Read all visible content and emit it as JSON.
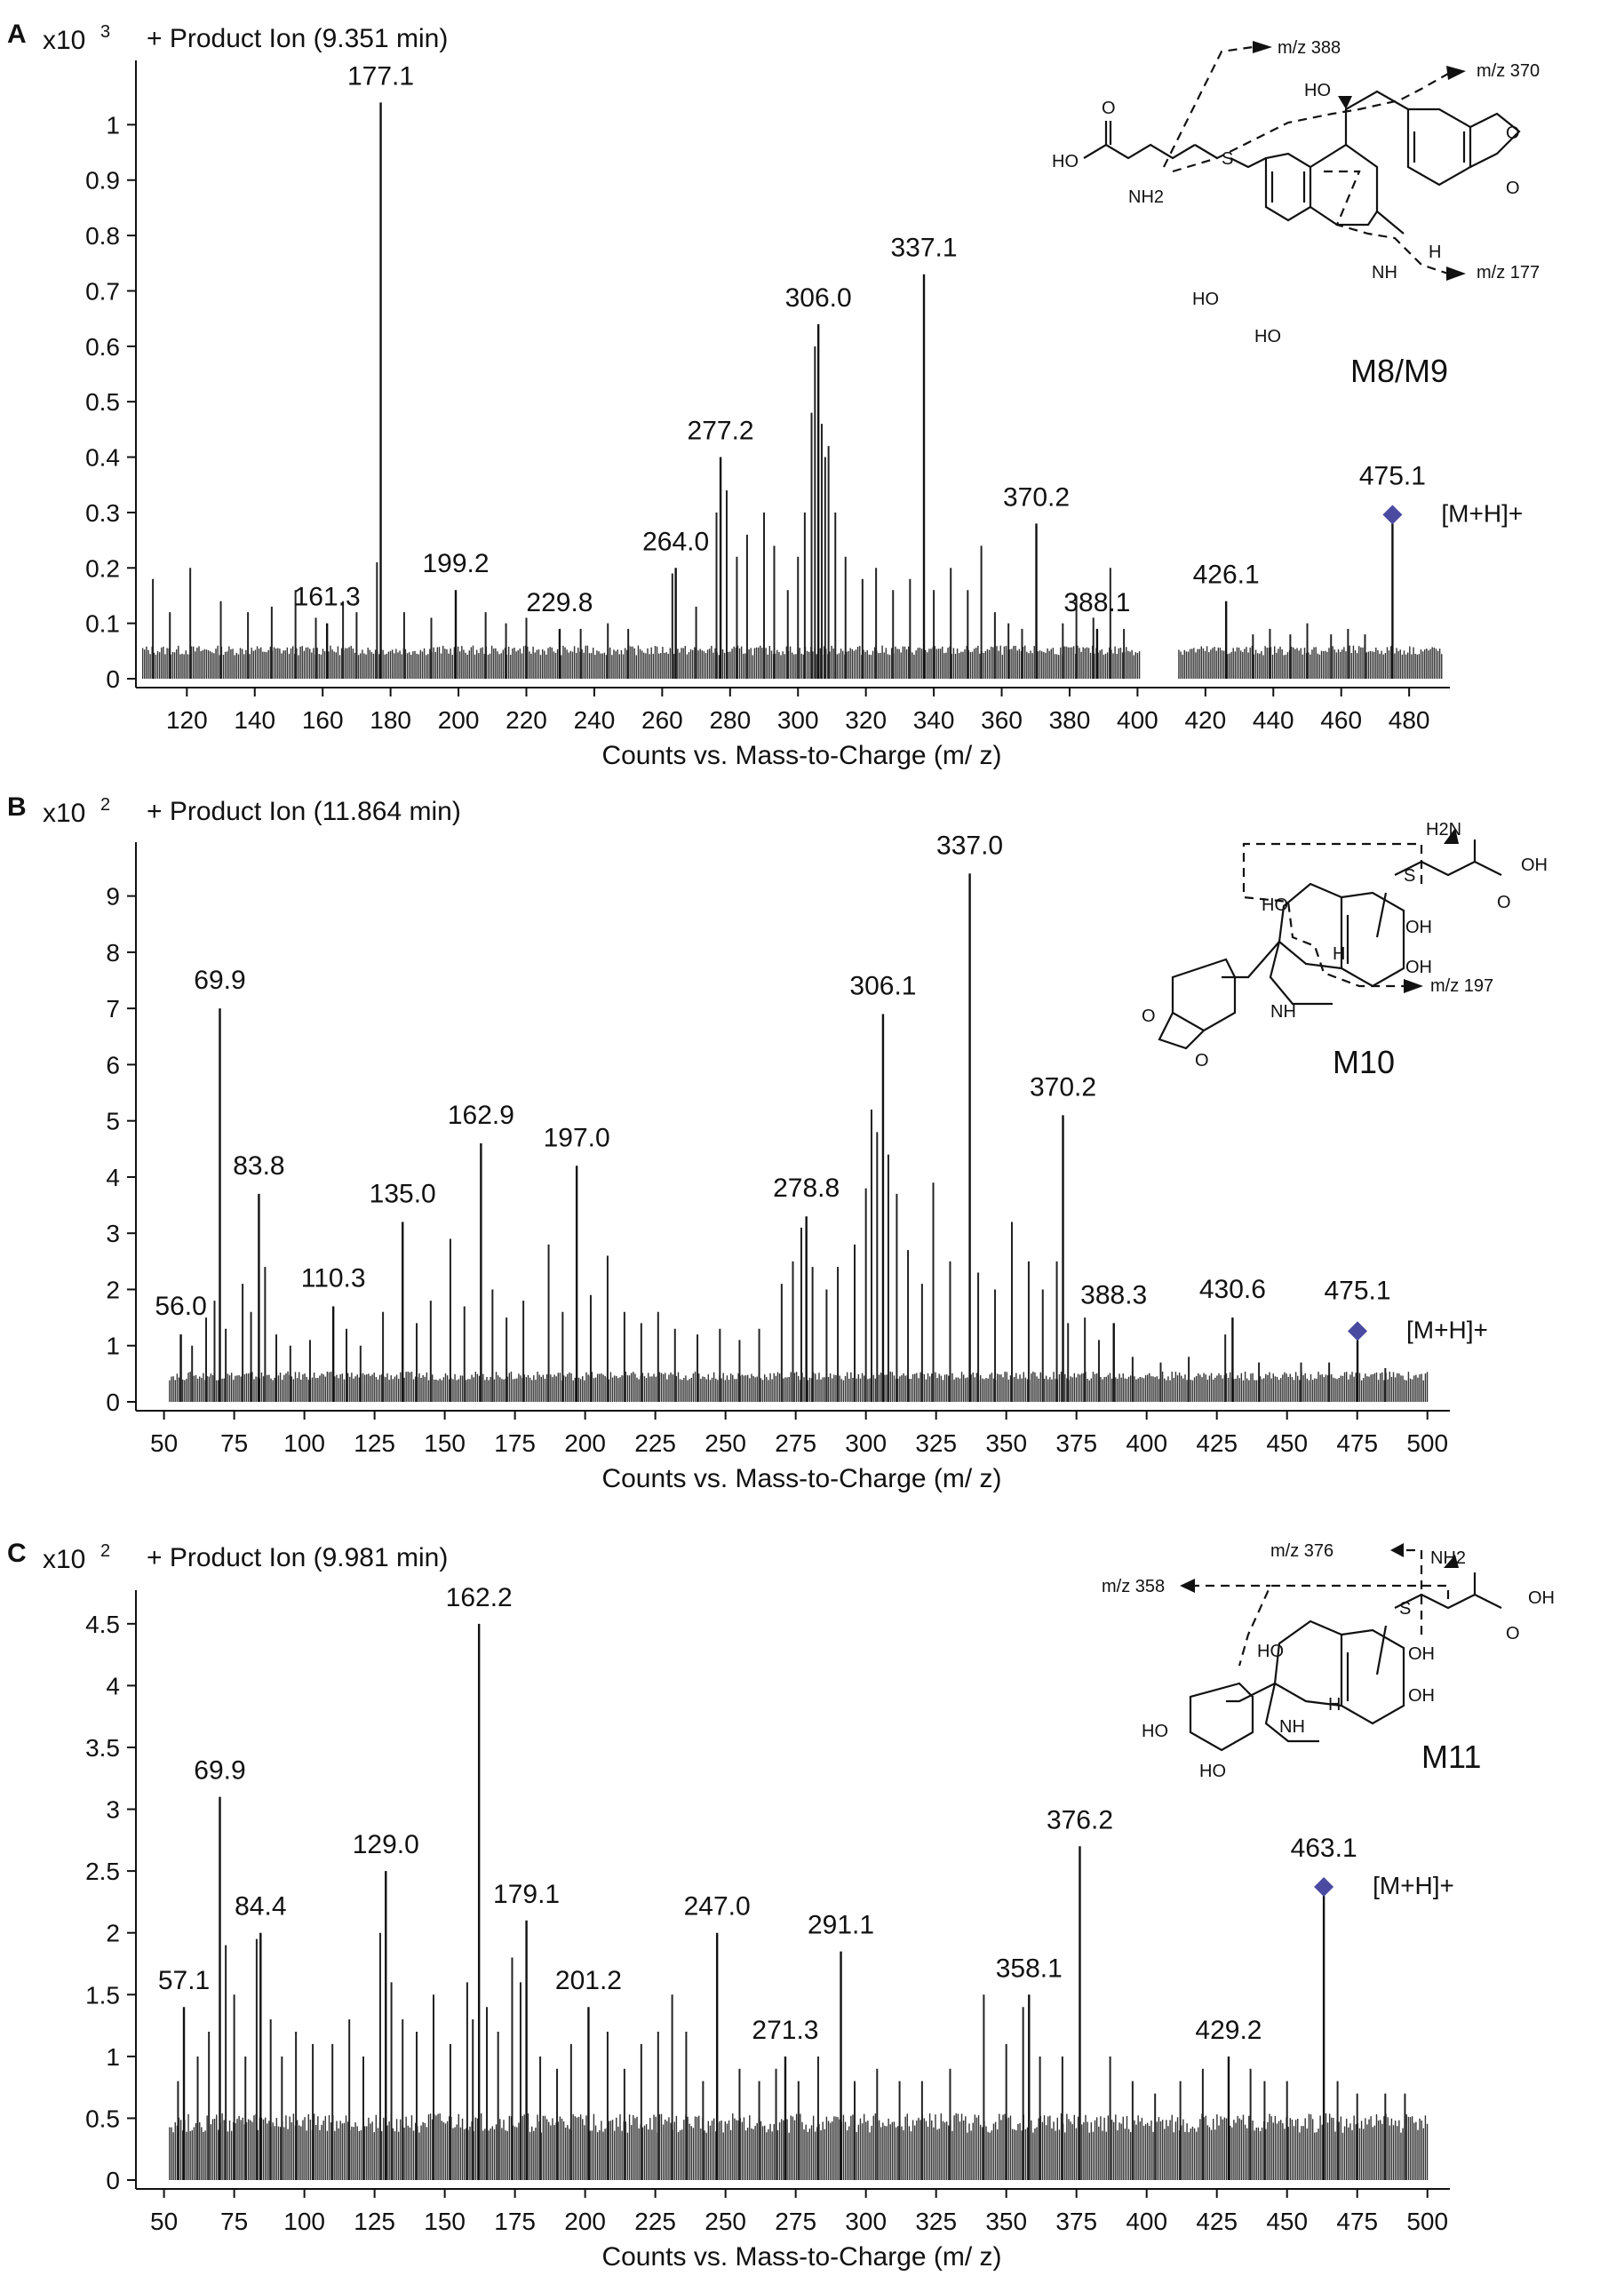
{
  "chart_data": [
    {
      "type": "bar",
      "panel_label": "A",
      "scale_label": "x10",
      "scale_exp": "3",
      "title": "+ Product Ion (9.351 min)",
      "xlabel": "Counts vs. Mass-to-Charge (m/ z)",
      "xlim": [
        105,
        492
      ],
      "ylim": [
        0,
        1.1
      ],
      "xticks": [
        120,
        140,
        160,
        180,
        200,
        220,
        240,
        260,
        280,
        300,
        320,
        340,
        360,
        380,
        400,
        420,
        440,
        460,
        480
      ],
      "yticks": [
        0,
        0.1,
        0.2,
        0.3,
        0.4,
        0.5,
        0.6,
        0.7,
        0.8,
        0.9,
        1
      ],
      "ytick_labels": [
        "0",
        "0.1",
        "0.2",
        "0.3",
        "0.4",
        "0.5",
        "0.6",
        "0.7",
        "0.8",
        "0.9",
        "1"
      ],
      "baseline_range": [
        107,
        490
      ],
      "baseline_gaps": [
        [
          401,
          412
        ]
      ],
      "baseline_level": 0.05,
      "peaks": [
        {
          "x": 177.1,
          "y": 1.04,
          "label": "177.1"
        },
        {
          "x": 161.3,
          "y": 0.1,
          "label": "161.3"
        },
        {
          "x": 199.2,
          "y": 0.16,
          "label": "199.2"
        },
        {
          "x": 229.8,
          "y": 0.09,
          "label": "229.8"
        },
        {
          "x": 264.0,
          "y": 0.2,
          "label": "264.0"
        },
        {
          "x": 277.2,
          "y": 0.4,
          "label": "277.2"
        },
        {
          "x": 306.0,
          "y": 0.64,
          "label": "306.0"
        },
        {
          "x": 337.1,
          "y": 0.73,
          "label": "337.1"
        },
        {
          "x": 370.2,
          "y": 0.28,
          "label": "370.2"
        },
        {
          "x": 388.1,
          "y": 0.09,
          "label": "388.1"
        },
        {
          "x": 426.1,
          "y": 0.14,
          "label": "426.1"
        },
        {
          "x": 475.1,
          "y": 0.28,
          "label": "475.1",
          "marker": true
        }
      ],
      "minor_peaks": [
        {
          "x": 110,
          "y": 0.18
        },
        {
          "x": 115,
          "y": 0.12
        },
        {
          "x": 121,
          "y": 0.2
        },
        {
          "x": 130,
          "y": 0.14
        },
        {
          "x": 138,
          "y": 0.12
        },
        {
          "x": 145,
          "y": 0.13
        },
        {
          "x": 152,
          "y": 0.16
        },
        {
          "x": 158,
          "y": 0.11
        },
        {
          "x": 166,
          "y": 0.14
        },
        {
          "x": 170,
          "y": 0.12
        },
        {
          "x": 176,
          "y": 0.21
        },
        {
          "x": 184,
          "y": 0.12
        },
        {
          "x": 192,
          "y": 0.11
        },
        {
          "x": 208,
          "y": 0.12
        },
        {
          "x": 214,
          "y": 0.1
        },
        {
          "x": 220,
          "y": 0.11
        },
        {
          "x": 236,
          "y": 0.09
        },
        {
          "x": 244,
          "y": 0.1
        },
        {
          "x": 250,
          "y": 0.09
        },
        {
          "x": 263,
          "y": 0.19
        },
        {
          "x": 270,
          "y": 0.13
        },
        {
          "x": 276,
          "y": 0.3
        },
        {
          "x": 279,
          "y": 0.34
        },
        {
          "x": 282,
          "y": 0.22
        },
        {
          "x": 285,
          "y": 0.26
        },
        {
          "x": 290,
          "y": 0.3
        },
        {
          "x": 293,
          "y": 0.24
        },
        {
          "x": 297,
          "y": 0.16
        },
        {
          "x": 300,
          "y": 0.22
        },
        {
          "x": 302,
          "y": 0.3
        },
        {
          "x": 304,
          "y": 0.48
        },
        {
          "x": 305,
          "y": 0.6
        },
        {
          "x": 307,
          "y": 0.46
        },
        {
          "x": 308,
          "y": 0.4
        },
        {
          "x": 309,
          "y": 0.42
        },
        {
          "x": 311,
          "y": 0.3
        },
        {
          "x": 314,
          "y": 0.22
        },
        {
          "x": 319,
          "y": 0.18
        },
        {
          "x": 323,
          "y": 0.2
        },
        {
          "x": 328,
          "y": 0.16
        },
        {
          "x": 333,
          "y": 0.18
        },
        {
          "x": 340,
          "y": 0.16
        },
        {
          "x": 345,
          "y": 0.2
        },
        {
          "x": 350,
          "y": 0.16
        },
        {
          "x": 354,
          "y": 0.24
        },
        {
          "x": 358,
          "y": 0.12
        },
        {
          "x": 362,
          "y": 0.1
        },
        {
          "x": 366,
          "y": 0.09
        },
        {
          "x": 378,
          "y": 0.1
        },
        {
          "x": 382,
          "y": 0.15
        },
        {
          "x": 387,
          "y": 0.11
        },
        {
          "x": 392,
          "y": 0.2
        },
        {
          "x": 396,
          "y": 0.09
        },
        {
          "x": 434,
          "y": 0.08
        },
        {
          "x": 439,
          "y": 0.09
        },
        {
          "x": 445,
          "y": 0.08
        },
        {
          "x": 450,
          "y": 0.1
        },
        {
          "x": 457,
          "y": 0.08
        },
        {
          "x": 462,
          "y": 0.09
        },
        {
          "x": 467,
          "y": 0.08
        }
      ],
      "legend": "[M+H]+",
      "structure": {
        "name": "M8/M9",
        "fragments": [
          "m/z 388",
          "m/z 370",
          "m/z 177"
        ],
        "groups": [
          "HO",
          "O",
          "NH2",
          "S",
          "HO",
          "O",
          "O",
          "HO",
          "HO",
          "NH",
          "H"
        ]
      }
    },
    {
      "type": "bar",
      "panel_label": "B",
      "scale_label": "x10",
      "scale_exp": "2",
      "title": "+ Product Ion (11.864 min)",
      "xlabel": "Counts vs. Mass-to-Charge (m/ z)",
      "xlim": [
        40,
        508
      ],
      "ylim": [
        0,
        9.8
      ],
      "xticks": [
        50,
        75,
        100,
        125,
        150,
        175,
        200,
        225,
        250,
        275,
        300,
        325,
        350,
        375,
        400,
        425,
        450,
        475,
        500
      ],
      "yticks": [
        0,
        1,
        2,
        3,
        4,
        5,
        6,
        7,
        8,
        9
      ],
      "ytick_labels": [
        "0",
        "1",
        "2",
        "3",
        "4",
        "5",
        "6",
        "7",
        "8",
        "9"
      ],
      "baseline_range": [
        52,
        500
      ],
      "baseline_gaps": [],
      "baseline_level": 0.45,
      "peaks": [
        {
          "x": 69.9,
          "y": 7.0,
          "label": "69.9"
        },
        {
          "x": 83.8,
          "y": 3.7,
          "label": "83.8"
        },
        {
          "x": 56.0,
          "y": 1.2,
          "label": "56.0"
        },
        {
          "x": 110.3,
          "y": 1.7,
          "label": "110.3"
        },
        {
          "x": 135.0,
          "y": 3.2,
          "label": "135.0"
        },
        {
          "x": 162.9,
          "y": 4.6,
          "label": "162.9"
        },
        {
          "x": 197.0,
          "y": 4.2,
          "label": "197.0"
        },
        {
          "x": 278.8,
          "y": 3.3,
          "label": "278.8"
        },
        {
          "x": 306.1,
          "y": 6.9,
          "label": "306.1"
        },
        {
          "x": 337.0,
          "y": 9.4,
          "label": "337.0"
        },
        {
          "x": 370.2,
          "y": 5.1,
          "label": "370.2"
        },
        {
          "x": 388.3,
          "y": 1.4,
          "label": "388.3"
        },
        {
          "x": 430.6,
          "y": 1.5,
          "label": "430.6"
        },
        {
          "x": 475.1,
          "y": 1.1,
          "label": "475.1",
          "marker": true
        }
      ],
      "minor_peaks": [
        {
          "x": 60,
          "y": 1.0
        },
        {
          "x": 65,
          "y": 1.5
        },
        {
          "x": 68,
          "y": 1.8
        },
        {
          "x": 72,
          "y": 1.3
        },
        {
          "x": 78,
          "y": 2.1
        },
        {
          "x": 81,
          "y": 1.6
        },
        {
          "x": 86,
          "y": 2.4
        },
        {
          "x": 90,
          "y": 1.2
        },
        {
          "x": 95,
          "y": 1.0
        },
        {
          "x": 102,
          "y": 1.1
        },
        {
          "x": 115,
          "y": 1.3
        },
        {
          "x": 120,
          "y": 1.0
        },
        {
          "x": 128,
          "y": 1.6
        },
        {
          "x": 140,
          "y": 1.4
        },
        {
          "x": 145,
          "y": 1.8
        },
        {
          "x": 152,
          "y": 2.9
        },
        {
          "x": 157,
          "y": 1.7
        },
        {
          "x": 167,
          "y": 2.0
        },
        {
          "x": 172,
          "y": 1.5
        },
        {
          "x": 178,
          "y": 1.8
        },
        {
          "x": 187,
          "y": 2.8
        },
        {
          "x": 192,
          "y": 1.6
        },
        {
          "x": 202,
          "y": 1.9
        },
        {
          "x": 208,
          "y": 2.6
        },
        {
          "x": 214,
          "y": 1.6
        },
        {
          "x": 220,
          "y": 1.4
        },
        {
          "x": 226,
          "y": 1.6
        },
        {
          "x": 232,
          "y": 1.3
        },
        {
          "x": 240,
          "y": 1.2
        },
        {
          "x": 248,
          "y": 1.3
        },
        {
          "x": 255,
          "y": 1.1
        },
        {
          "x": 262,
          "y": 1.3
        },
        {
          "x": 270,
          "y": 2.1
        },
        {
          "x": 274,
          "y": 2.5
        },
        {
          "x": 277,
          "y": 3.1
        },
        {
          "x": 281,
          "y": 2.4
        },
        {
          "x": 286,
          "y": 2.0
        },
        {
          "x": 290,
          "y": 2.4
        },
        {
          "x": 296,
          "y": 2.8
        },
        {
          "x": 300,
          "y": 3.8
        },
        {
          "x": 302,
          "y": 5.2
        },
        {
          "x": 304,
          "y": 4.8
        },
        {
          "x": 308,
          "y": 4.4
        },
        {
          "x": 311,
          "y": 3.7
        },
        {
          "x": 315,
          "y": 2.7
        },
        {
          "x": 320,
          "y": 2.1
        },
        {
          "x": 324,
          "y": 3.9
        },
        {
          "x": 330,
          "y": 2.5
        },
        {
          "x": 340,
          "y": 2.3
        },
        {
          "x": 346,
          "y": 2.0
        },
        {
          "x": 352,
          "y": 3.2
        },
        {
          "x": 358,
          "y": 2.5
        },
        {
          "x": 363,
          "y": 2.0
        },
        {
          "x": 368,
          "y": 2.5
        },
        {
          "x": 372,
          "y": 1.4
        },
        {
          "x": 378,
          "y": 1.5
        },
        {
          "x": 383,
          "y": 1.1
        },
        {
          "x": 395,
          "y": 0.8
        },
        {
          "x": 405,
          "y": 0.7
        },
        {
          "x": 415,
          "y": 0.8
        },
        {
          "x": 428,
          "y": 1.2
        },
        {
          "x": 440,
          "y": 0.7
        },
        {
          "x": 455,
          "y": 0.7
        },
        {
          "x": 465,
          "y": 0.7
        },
        {
          "x": 485,
          "y": 0.6
        }
      ],
      "legend": "[M+H]+",
      "structure": {
        "name": "M10",
        "fragments": [
          "m/z 197"
        ],
        "groups": [
          "H2N",
          "OH",
          "O",
          "S",
          "HO",
          "OH",
          "OH",
          "O",
          "O",
          "NH",
          "H"
        ]
      }
    },
    {
      "type": "bar",
      "panel_label": "C",
      "scale_label": "x10",
      "scale_exp": "2",
      "title": "+ Product Ion (9.981 min)",
      "xlabel": "Counts vs. Mass-to-Charge (m/ z)",
      "xlim": [
        40,
        508
      ],
      "ylim": [
        0,
        4.7
      ],
      "xticks": [
        50,
        75,
        100,
        125,
        150,
        175,
        200,
        225,
        250,
        275,
        300,
        325,
        350,
        375,
        400,
        425,
        450,
        475,
        500
      ],
      "yticks": [
        0,
        0.5,
        1,
        1.5,
        2,
        2.5,
        3,
        3.5,
        4,
        4.5
      ],
      "ytick_labels": [
        "0",
        "0.5",
        "1",
        "1.5",
        "2",
        "2.5",
        "3",
        "3.5",
        "4",
        "4.5"
      ],
      "baseline_range": [
        52,
        500
      ],
      "baseline_gaps": [],
      "baseline_level": 0.45,
      "peaks": [
        {
          "x": 69.9,
          "y": 3.1,
          "label": "69.9"
        },
        {
          "x": 84.4,
          "y": 2.0,
          "label": "84.4"
        },
        {
          "x": 57.1,
          "y": 1.4,
          "label": "57.1"
        },
        {
          "x": 129.0,
          "y": 2.5,
          "label": "129.0"
        },
        {
          "x": 162.2,
          "y": 4.5,
          "label": "162.2"
        },
        {
          "x": 179.1,
          "y": 2.1,
          "label": "179.1"
        },
        {
          "x": 201.2,
          "y": 1.4,
          "label": "201.2"
        },
        {
          "x": 247.0,
          "y": 2.0,
          "label": "247.0"
        },
        {
          "x": 271.3,
          "y": 1.0,
          "label": "271.3"
        },
        {
          "x": 291.1,
          "y": 1.85,
          "label": "291.1"
        },
        {
          "x": 358.1,
          "y": 1.5,
          "label": "358.1"
        },
        {
          "x": 376.2,
          "y": 2.7,
          "label": "376.2"
        },
        {
          "x": 429.2,
          "y": 1.0,
          "label": "429.2"
        },
        {
          "x": 463.1,
          "y": 2.3,
          "label": "463.1",
          "marker": true
        }
      ],
      "minor_peaks": [
        {
          "x": 55,
          "y": 0.8
        },
        {
          "x": 62,
          "y": 1.0
        },
        {
          "x": 66,
          "y": 1.2
        },
        {
          "x": 72,
          "y": 1.9
        },
        {
          "x": 75,
          "y": 1.5
        },
        {
          "x": 79,
          "y": 1.0
        },
        {
          "x": 83,
          "y": 1.95
        },
        {
          "x": 88,
          "y": 1.3
        },
        {
          "x": 92,
          "y": 1.0
        },
        {
          "x": 97,
          "y": 1.2
        },
        {
          "x": 103,
          "y": 1.1
        },
        {
          "x": 110,
          "y": 1.1
        },
        {
          "x": 116,
          "y": 1.3
        },
        {
          "x": 121,
          "y": 1.0
        },
        {
          "x": 127,
          "y": 2.0
        },
        {
          "x": 131,
          "y": 1.6
        },
        {
          "x": 135,
          "y": 1.3
        },
        {
          "x": 140,
          "y": 1.2
        },
        {
          "x": 146,
          "y": 1.5
        },
        {
          "x": 152,
          "y": 1.1
        },
        {
          "x": 158,
          "y": 1.6
        },
        {
          "x": 160,
          "y": 1.3
        },
        {
          "x": 165,
          "y": 1.4
        },
        {
          "x": 169,
          "y": 1.2
        },
        {
          "x": 174,
          "y": 1.8
        },
        {
          "x": 177,
          "y": 1.6
        },
        {
          "x": 184,
          "y": 1.0
        },
        {
          "x": 190,
          "y": 0.9
        },
        {
          "x": 195,
          "y": 1.1
        },
        {
          "x": 208,
          "y": 1.2
        },
        {
          "x": 214,
          "y": 0.9
        },
        {
          "x": 220,
          "y": 1.1
        },
        {
          "x": 226,
          "y": 1.2
        },
        {
          "x": 231,
          "y": 1.5
        },
        {
          "x": 236,
          "y": 1.2
        },
        {
          "x": 242,
          "y": 0.8
        },
        {
          "x": 255,
          "y": 0.9
        },
        {
          "x": 262,
          "y": 0.8
        },
        {
          "x": 268,
          "y": 0.9
        },
        {
          "x": 276,
          "y": 0.8
        },
        {
          "x": 283,
          "y": 1.0
        },
        {
          "x": 296,
          "y": 0.8
        },
        {
          "x": 304,
          "y": 0.9
        },
        {
          "x": 312,
          "y": 0.8
        },
        {
          "x": 320,
          "y": 0.8
        },
        {
          "x": 330,
          "y": 0.9
        },
        {
          "x": 342,
          "y": 1.5
        },
        {
          "x": 350,
          "y": 1.1
        },
        {
          "x": 356,
          "y": 1.4
        },
        {
          "x": 362,
          "y": 1.0
        },
        {
          "x": 370,
          "y": 1.0
        },
        {
          "x": 387,
          "y": 1.0
        },
        {
          "x": 395,
          "y": 0.8
        },
        {
          "x": 403,
          "y": 0.7
        },
        {
          "x": 412,
          "y": 0.8
        },
        {
          "x": 420,
          "y": 0.9
        },
        {
          "x": 437,
          "y": 0.9
        },
        {
          "x": 442,
          "y": 0.8
        },
        {
          "x": 450,
          "y": 0.8
        },
        {
          "x": 468,
          "y": 0.8
        },
        {
          "x": 475,
          "y": 0.7
        },
        {
          "x": 485,
          "y": 0.7
        },
        {
          "x": 492,
          "y": 0.7
        }
      ],
      "legend": "[M+H]+",
      "structure": {
        "name": "M11",
        "fragments": [
          "m/z 376",
          "m/z 358"
        ],
        "groups": [
          "NH2",
          "OH",
          "O",
          "S",
          "HO",
          "OH",
          "OH",
          "HO",
          "HO",
          "NH",
          "H"
        ]
      }
    }
  ]
}
